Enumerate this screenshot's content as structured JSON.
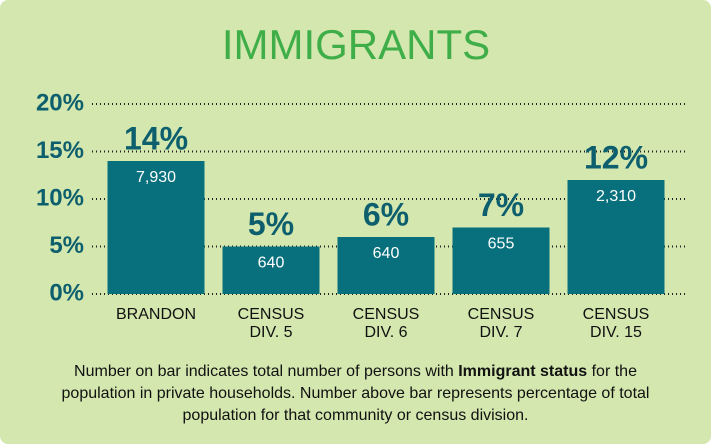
{
  "chart_data": {
    "type": "bar",
    "title": "IMMIGRANTS",
    "categories": [
      "BRANDON",
      "CENSUS DIV. 5",
      "CENSUS DIV. 6",
      "CENSUS DIV. 7",
      "CENSUS DIV. 15"
    ],
    "values": [
      14,
      5,
      6,
      7,
      12
    ],
    "value_labels": [
      "14%",
      "5%",
      "6%",
      "7%",
      "12%"
    ],
    "counts": [
      {
        "value": 7930,
        "label": "7,930"
      },
      {
        "value": 640,
        "label": "640"
      },
      {
        "value": 640,
        "label": "640"
      },
      {
        "value": 655,
        "label": "655"
      },
      {
        "value": 2310,
        "label": "2,310"
      }
    ],
    "color": "#07707c",
    "ylim": [
      0,
      20
    ],
    "yticks": [
      {
        "value": 0,
        "label": "0%"
      },
      {
        "value": 5,
        "label": "5%"
      },
      {
        "value": 10,
        "label": "10%"
      },
      {
        "value": 15,
        "label": "15%"
      },
      {
        "value": 20,
        "label": "20%"
      }
    ],
    "grid": true,
    "footnote": [
      "Number on bar indicates total number of persons with ",
      "Immigrant status",
      " for the population in private households. Number above bar represents percentage of total population for that community or census division."
    ]
  }
}
